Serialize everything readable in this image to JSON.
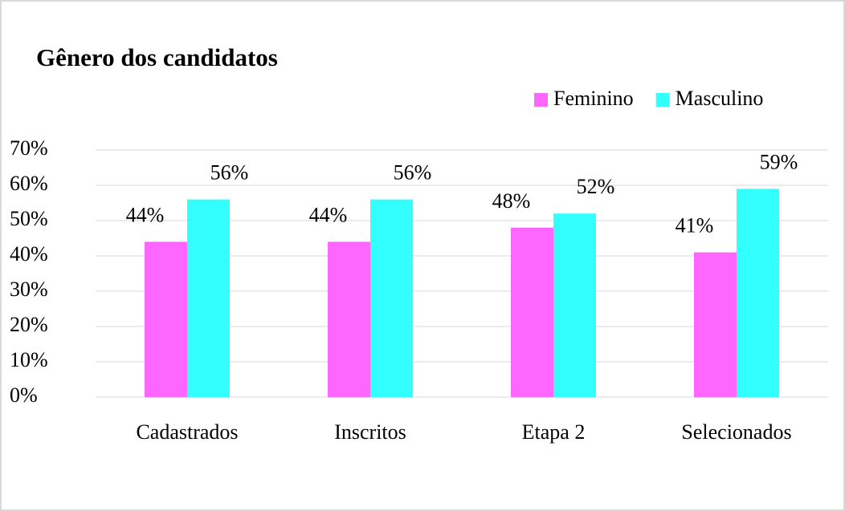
{
  "chart_data": {
    "type": "bar",
    "title": "Gênero dos candidatos",
    "categories": [
      "Cadastrados",
      "Inscritos",
      "Etapa 2",
      "Selecionados"
    ],
    "series": [
      {
        "name": "Feminino",
        "color": "#ff66ff",
        "values": [
          44,
          44,
          48,
          41
        ],
        "value_labels": [
          "44%",
          "44%",
          "48%",
          "41%"
        ]
      },
      {
        "name": "Masculino",
        "color": "#33ffff",
        "values": [
          56,
          56,
          52,
          59
        ],
        "value_labels": [
          "56%",
          "56%",
          "52%",
          "59%"
        ]
      }
    ],
    "ylim": [
      0,
      70
    ],
    "yticks": [
      {
        "value": 0,
        "label": "0%"
      },
      {
        "value": 10,
        "label": "10%"
      },
      {
        "value": 20,
        "label": "20%"
      },
      {
        "value": 30,
        "label": "30%"
      },
      {
        "value": 40,
        "label": "40%"
      },
      {
        "value": 50,
        "label": "50%"
      },
      {
        "value": 60,
        "label": "60%"
      },
      {
        "value": 70,
        "label": "70%"
      }
    ],
    "grid": true,
    "legend": "top-right"
  }
}
